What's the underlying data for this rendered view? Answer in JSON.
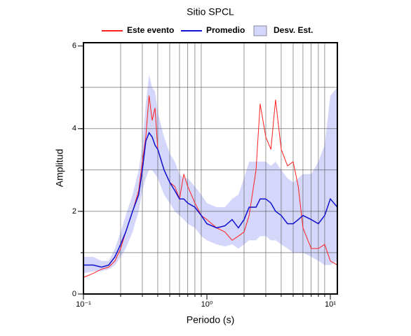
{
  "chart_data": {
    "type": "line",
    "title": "Sitio SPCL",
    "xlabel": "Periodo (s)",
    "ylabel": "Amplitud",
    "xscale": "log",
    "xlim": [
      0.1,
      11.4
    ],
    "ylim": [
      0,
      6.08
    ],
    "xticks": [
      {
        "value": 0.1,
        "label": "10⁻¹"
      },
      {
        "value": 1,
        "label": "10⁰"
      },
      {
        "value": 10,
        "label": "10¹"
      }
    ],
    "yticks": [
      0,
      2,
      4,
      6
    ],
    "xgrid": [
      0.2,
      0.3,
      0.4,
      0.5,
      0.6,
      0.7,
      0.8,
      0.9,
      2,
      3,
      4,
      5,
      6,
      7,
      8,
      9
    ],
    "ygrid": [
      1,
      2,
      3,
      4,
      5
    ],
    "legend": "top",
    "x": [
      0.1,
      0.12,
      0.14,
      0.16,
      0.18,
      0.2,
      0.22,
      0.25,
      0.28,
      0.3,
      0.32,
      0.34,
      0.36,
      0.38,
      0.4,
      0.45,
      0.5,
      0.55,
      0.6,
      0.65,
      0.7,
      0.8,
      0.9,
      1.0,
      1.2,
      1.4,
      1.6,
      1.8,
      2.0,
      2.2,
      2.5,
      2.7,
      3.0,
      3.3,
      3.6,
      4.0,
      4.5,
      5.0,
      5.5,
      6.0,
      7.0,
      8.0,
      9.0,
      10.0,
      11.4
    ],
    "series": [
      {
        "name": "Este evento",
        "color": "#ff2020",
        "values": [
          0.4,
          0.5,
          0.6,
          0.65,
          0.8,
          1.1,
          1.5,
          2.0,
          2.5,
          3.2,
          3.8,
          4.8,
          4.2,
          4.5,
          3.5,
          3.0,
          2.7,
          2.6,
          2.3,
          2.9,
          2.6,
          2.2,
          1.9,
          1.8,
          1.6,
          1.5,
          1.3,
          1.4,
          1.5,
          1.9,
          3.0,
          4.6,
          3.8,
          3.5,
          4.7,
          3.5,
          3.1,
          3.2,
          2.6,
          1.6,
          1.1,
          1.1,
          1.2,
          0.8,
          0.7
        ]
      },
      {
        "name": "Promedio",
        "color": "#1010d0",
        "values": [
          0.7,
          0.7,
          0.65,
          0.7,
          0.9,
          1.2,
          1.5,
          2.0,
          2.4,
          3.0,
          3.7,
          3.9,
          3.8,
          3.6,
          3.5,
          3.0,
          2.7,
          2.5,
          2.3,
          2.3,
          2.2,
          2.1,
          1.9,
          1.7,
          1.6,
          1.65,
          1.8,
          1.6,
          1.8,
          2.1,
          2.1,
          2.3,
          2.3,
          2.2,
          2.0,
          1.9,
          1.7,
          1.7,
          1.8,
          1.9,
          1.8,
          1.7,
          1.9,
          2.3,
          2.1
        ]
      },
      {
        "name": "Desv. Est.",
        "color": "#d4d6fa",
        "band": true,
        "lower": [
          0.5,
          0.55,
          0.55,
          0.6,
          0.7,
          0.9,
          1.1,
          1.5,
          2.0,
          2.5,
          2.8,
          3.0,
          3.0,
          2.9,
          2.8,
          2.4,
          2.2,
          2.0,
          1.9,
          1.8,
          1.7,
          1.6,
          1.4,
          1.3,
          1.2,
          1.15,
          1.2,
          1.1,
          1.2,
          1.3,
          1.3,
          1.4,
          1.4,
          1.3,
          1.3,
          1.2,
          1.1,
          1.0,
          1.0,
          1.0,
          0.9,
          0.8,
          0.7,
          0.7,
          0.8
        ],
        "upper": [
          0.9,
          0.9,
          0.8,
          0.8,
          1.1,
          1.5,
          1.9,
          2.4,
          3.0,
          3.6,
          4.6,
          5.3,
          5.0,
          4.9,
          4.4,
          3.8,
          3.4,
          3.2,
          2.9,
          2.8,
          2.8,
          2.6,
          2.4,
          2.2,
          2.1,
          2.1,
          2.3,
          2.4,
          2.8,
          3.2,
          3.2,
          3.2,
          3.2,
          3.1,
          3.2,
          3.0,
          2.8,
          2.7,
          2.8,
          2.9,
          2.9,
          3.2,
          3.6,
          4.8,
          5.0
        ]
      }
    ]
  }
}
